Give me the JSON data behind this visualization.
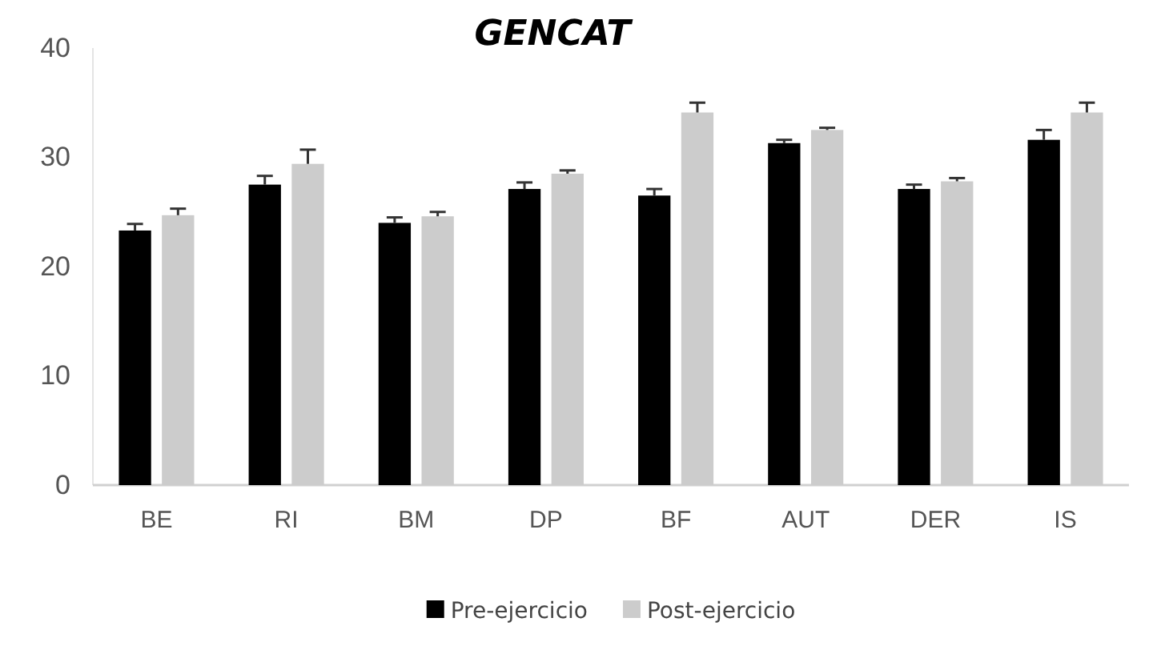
{
  "chart_data": {
    "type": "bar",
    "title": "GENCAT",
    "categories": [
      "BE",
      "RI",
      "BM",
      "DP",
      "BF",
      "AUT",
      "DER",
      "IS"
    ],
    "series": [
      {
        "name": "Pre-ejercicio",
        "color": "#000000",
        "values": [
          23.3,
          27.5,
          24.0,
          27.1,
          26.5,
          31.3,
          27.1,
          31.6
        ],
        "errors": [
          [
            23.3,
            23.9
          ],
          [
            27.5,
            28.3
          ],
          [
            24.0,
            24.5
          ],
          [
            27.1,
            27.7
          ],
          [
            26.5,
            27.1
          ],
          [
            31.3,
            31.6
          ],
          [
            27.1,
            27.5
          ],
          [
            31.6,
            32.5
          ]
        ]
      },
      {
        "name": "Post-ejercicio",
        "color": "#cccccc",
        "values": [
          24.7,
          29.4,
          24.6,
          28.5,
          34.1,
          32.5,
          27.8,
          34.1
        ],
        "errors": [
          [
            24.7,
            25.3
          ],
          [
            29.4,
            30.7
          ],
          [
            24.6,
            25.0
          ],
          [
            28.5,
            28.8
          ],
          [
            34.1,
            35.0
          ],
          [
            32.5,
            32.7
          ],
          [
            27.8,
            28.1
          ],
          [
            34.1,
            35.0
          ]
        ]
      }
    ],
    "ylim": [
      0,
      40
    ],
    "yticks": [
      0,
      10,
      20,
      30,
      40
    ],
    "grid": false,
    "legend": "bottom"
  }
}
